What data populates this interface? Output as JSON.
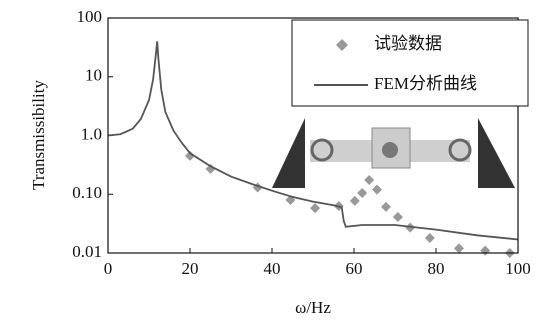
{
  "chart_data": {
    "type": "scatter-line",
    "xlabel": "ω/Hz",
    "ylabel": "Transmissibility",
    "xlim": [
      0,
      100
    ],
    "xticks": [
      0,
      20,
      40,
      60,
      80,
      100
    ],
    "ylim": [
      0.01,
      100
    ],
    "yscale": "log",
    "yticks": [
      0.01,
      {
        "value": 0.1,
        "label": "0.10"
      },
      {
        "value": 1,
        "label": "1.0"
      },
      10,
      100
    ],
    "legend": "upper right",
    "series": [
      {
        "name": "试验数据",
        "kind": "scatter",
        "color": "#999999",
        "x": [
          20,
          25,
          36.5,
          44.5,
          50.5,
          56.3,
          60.2,
          62,
          63.7,
          65.6,
          67.8,
          70.7,
          73.7,
          78.5,
          85.6,
          92,
          98
        ],
        "values": [
          0.45,
          0.27,
          0.13,
          0.08,
          0.058,
          0.063,
          0.077,
          0.105,
          0.175,
          0.12,
          0.061,
          0.041,
          0.027,
          0.018,
          0.012,
          0.011,
          0.01
        ]
      },
      {
        "name": "FEM分析曲线",
        "kind": "line",
        "color": "#555555",
        "x": [
          0,
          3,
          6,
          8,
          10,
          11,
          11.7,
          12,
          12.3,
          13,
          14,
          16,
          18,
          20,
          25,
          30,
          35,
          40,
          45,
          50,
          55,
          57,
          57.5,
          58,
          62,
          70,
          80,
          90,
          100
        ],
        "values": [
          1.0,
          1.05,
          1.3,
          1.9,
          4,
          9,
          25,
          40,
          20,
          6,
          2.5,
          1.2,
          0.75,
          0.5,
          0.3,
          0.2,
          0.15,
          0.115,
          0.09,
          0.075,
          0.065,
          0.06,
          0.035,
          0.028,
          0.03,
          0.03,
          0.025,
          0.02,
          0.017
        ]
      }
    ]
  }
}
